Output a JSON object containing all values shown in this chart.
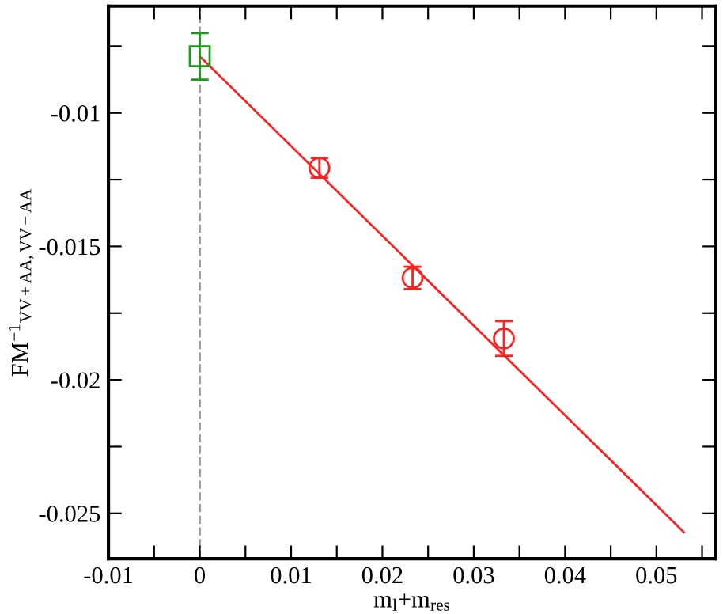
{
  "chart_data": {
    "type": "scatter",
    "xlabel": "m$_{l}$+m$_{res}$",
    "ylabel": "FM$^{−1}$$_{VV+AA,VV−AA}$",
    "xlim": [
      -0.01,
      0.0565
    ],
    "ylim": [
      -0.0267,
      -0.006
    ],
    "xticks": [
      -0.01,
      {
        "value": -0.005,
        "label": null
      },
      0,
      {
        "value": 0.005,
        "label": null
      },
      0.01,
      {
        "value": 0.015,
        "label": null
      },
      0.02,
      {
        "value": 0.025,
        "label": null
      },
      0.03,
      {
        "value": 0.035,
        "label": null
      },
      0.04,
      {
        "value": 0.045,
        "label": null
      },
      0.05,
      {
        "value": 0.055,
        "label": null
      }
    ],
    "yticks": [
      {
        "value": -0.0075,
        "label": null
      },
      -0.01,
      {
        "value": -0.0125,
        "label": null
      },
      -0.015,
      {
        "value": -0.0175,
        "label": null
      },
      -0.02,
      {
        "value": -0.0225,
        "label": null
      },
      -0.025
    ],
    "grid": false,
    "legend": false,
    "ref_lines": [
      {
        "axis": "x",
        "value": 0,
        "color": "#999999",
        "line_style": "dashed"
      }
    ],
    "series": [
      {
        "marker": "square",
        "color": "#1a9a1a",
        "x": [
          0
        ],
        "values": [
          -0.00788
        ],
        "errors": [
          0.00087
        ]
      },
      {
        "marker": "circle",
        "color": "#ff2020",
        "x": [
          0.0131,
          0.0233,
          0.0333
        ],
        "values": [
          -0.01206,
          -0.01618,
          -0.01845
        ],
        "errors": [
          0.00037,
          0.00042,
          0.00065
        ]
      },
      {
        "type": "line",
        "marker": "none",
        "line_style": "solid",
        "color": "#ff2020",
        "x": [
          0,
          0.053
        ],
        "values": [
          -0.00788,
          -0.0257
        ]
      }
    ]
  }
}
